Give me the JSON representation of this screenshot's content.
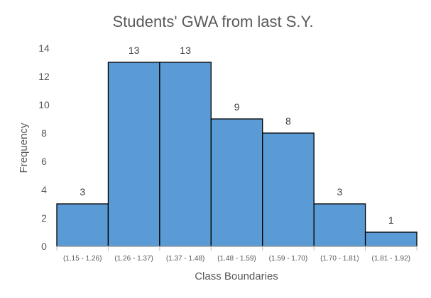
{
  "chart_data": {
    "type": "bar",
    "title": "Students' GWA from last S.Y.",
    "xlabel": "Class Boundaries",
    "ylabel": "Frequency",
    "categories": [
      "(1.15 - 1.26)",
      "(1.26 - 1.37)",
      "(1.37 - 1.48)",
      "(1.48 - 1.59)",
      "(1.59 - 1.70)",
      "(1.70 - 1.81)",
      "(1.81 - 1.92)"
    ],
    "values": [
      3,
      13,
      13,
      9,
      8,
      3,
      1
    ],
    "ylim": [
      0,
      14
    ],
    "yticks": [
      0,
      2,
      4,
      6,
      8,
      10,
      12,
      14
    ],
    "grid": false,
    "legend": false,
    "bar_color": "#5B9BD5",
    "bar_edge_color": "#000000"
  }
}
